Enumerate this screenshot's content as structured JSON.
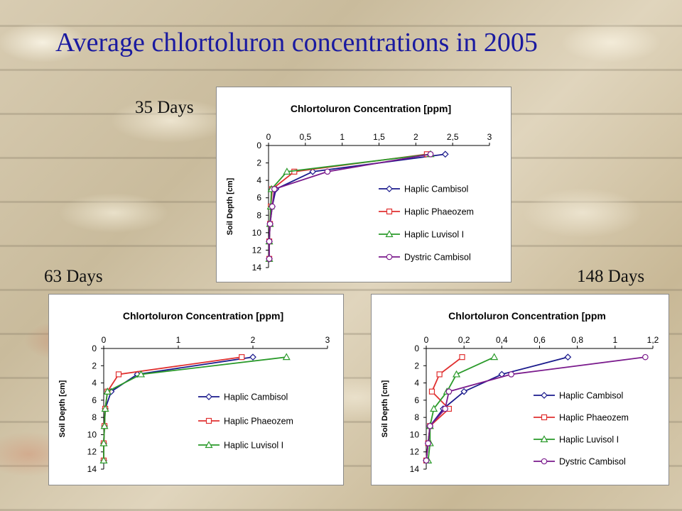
{
  "page": {
    "title": "Average chlortoluron concentrations in 2005"
  },
  "chart_data": [
    {
      "type": "line",
      "panel_label": "35 Days",
      "title": "Chlortoluron Concentration [ppm]",
      "xlabel": "Chlortoluron Concentration [ppm]",
      "ylabel": "Soil Depth [cm]",
      "xlim": [
        0,
        3
      ],
      "ylim": [
        0,
        14
      ],
      "x_ticks": [
        0,
        0.5,
        1,
        1.5,
        2,
        2.5,
        3
      ],
      "x_tick_labels": [
        "0",
        "0,5",
        "1",
        "1,5",
        "2",
        "2,5",
        "3"
      ],
      "y_ticks": [
        0,
        2,
        4,
        6,
        8,
        10,
        12,
        14
      ],
      "y_tick_labels": [
        "0",
        "2",
        "4",
        "6",
        "8",
        "10",
        "12",
        "14"
      ],
      "x_axis_position": "top",
      "y_inverted": true,
      "legend_position": "right",
      "series": [
        {
          "name": "Haplic Cambisol",
          "color": "#1a1a8c",
          "marker": "diamond",
          "points": [
            [
              2.4,
              1
            ],
            [
              0.6,
              3
            ],
            [
              0.1,
              5
            ],
            [
              0.05,
              7
            ],
            [
              0.02,
              9
            ],
            [
              0.01,
              11
            ],
            [
              0.01,
              13
            ]
          ]
        },
        {
          "name": "Haplic Phaeozem",
          "color": "#e03030",
          "marker": "square",
          "points": [
            [
              2.15,
              1
            ],
            [
              0.35,
              3
            ],
            [
              0.05,
              5
            ],
            [
              0.03,
              7
            ],
            [
              0.02,
              9
            ],
            [
              0.01,
              11
            ],
            [
              0.01,
              13
            ]
          ]
        },
        {
          "name": "Haplic Luvisol I",
          "color": "#2a9a2a",
          "marker": "triangle",
          "points": [
            [
              2.2,
              1
            ],
            [
              0.25,
              3
            ],
            [
              0.04,
              5
            ],
            [
              0.03,
              7
            ],
            [
              0.02,
              9
            ],
            [
              0.01,
              11
            ],
            [
              0.01,
              13
            ]
          ]
        },
        {
          "name": "Dystric Cambisol",
          "color": "#7a1a8c",
          "marker": "circle",
          "points": [
            [
              2.2,
              1
            ],
            [
              0.8,
              3
            ],
            [
              0.08,
              5
            ],
            [
              0.05,
              7
            ],
            [
              0.02,
              9
            ],
            [
              0.01,
              11
            ],
            [
              0.01,
              13
            ]
          ]
        }
      ]
    },
    {
      "type": "line",
      "panel_label": "63 Days",
      "title": "Chlortoluron Concentration [ppm]",
      "xlabel": "Chlortoluron Concentration [ppm]",
      "ylabel": "Soil Depth [cm]",
      "xlim": [
        0,
        3
      ],
      "ylim": [
        0,
        14
      ],
      "x_ticks": [
        0,
        1,
        2,
        3
      ],
      "x_tick_labels": [
        "0",
        "1",
        "2",
        "3"
      ],
      "y_ticks": [
        0,
        2,
        4,
        6,
        8,
        10,
        12,
        14
      ],
      "y_tick_labels": [
        "0",
        "2",
        "4",
        "6",
        "8",
        "10",
        "12",
        "14"
      ],
      "x_axis_position": "top",
      "y_inverted": true,
      "legend_position": "right",
      "series": [
        {
          "name": "Haplic Cambisol",
          "color": "#1a1a8c",
          "marker": "diamond",
          "points": [
            [
              2.0,
              1
            ],
            [
              0.45,
              3
            ],
            [
              0.1,
              5
            ],
            [
              0.02,
              7
            ],
            [
              0.01,
              9
            ],
            [
              0.0,
              11
            ],
            [
              0.0,
              13
            ]
          ]
        },
        {
          "name": "Haplic Phaeozem",
          "color": "#e03030",
          "marker": "square",
          "points": [
            [
              1.85,
              1
            ],
            [
              0.2,
              3
            ],
            [
              0.05,
              5
            ],
            [
              0.02,
              7
            ],
            [
              0.01,
              9
            ],
            [
              0.0,
              11
            ],
            [
              0.0,
              13
            ]
          ]
        },
        {
          "name": "Haplic Luvisol I",
          "color": "#2a9a2a",
          "marker": "triangle",
          "points": [
            [
              2.45,
              1
            ],
            [
              0.5,
              3
            ],
            [
              0.05,
              5
            ],
            [
              0.02,
              7
            ],
            [
              0.01,
              9
            ],
            [
              0.0,
              11
            ],
            [
              0.0,
              13
            ]
          ]
        }
      ]
    },
    {
      "type": "line",
      "panel_label": "148 Days",
      "title": "Chlortoluron Concentration [ppm",
      "xlabel": "Chlortoluron Concentration [ppm",
      "ylabel": "Soil Depth [cm]",
      "xlim": [
        0,
        1.2
      ],
      "ylim": [
        0,
        14
      ],
      "x_ticks": [
        0,
        0.2,
        0.4,
        0.6,
        0.8,
        1,
        1.2
      ],
      "x_tick_labels": [
        "0",
        "0,2",
        "0,4",
        "0,6",
        "0,8",
        "1",
        "1,2"
      ],
      "y_ticks": [
        0,
        2,
        4,
        6,
        8,
        10,
        12,
        14
      ],
      "y_tick_labels": [
        "0",
        "2",
        "4",
        "6",
        "8",
        "10",
        "12",
        "14"
      ],
      "x_axis_position": "top",
      "y_inverted": true,
      "legend_position": "right",
      "series": [
        {
          "name": "Haplic Cambisol",
          "color": "#1a1a8c",
          "marker": "diamond",
          "points": [
            [
              0.75,
              1
            ],
            [
              0.4,
              3
            ],
            [
              0.2,
              5
            ],
            [
              0.09,
              7
            ],
            [
              0.02,
              9
            ],
            [
              0.01,
              11
            ],
            [
              0.0,
              13
            ]
          ]
        },
        {
          "name": "Haplic Phaeozem",
          "color": "#e03030",
          "marker": "square",
          "points": [
            [
              0.19,
              1
            ],
            [
              0.07,
              3
            ],
            [
              0.03,
              5
            ],
            [
              0.12,
              7
            ],
            [
              0.02,
              9
            ],
            [
              0.01,
              11
            ],
            [
              0.0,
              13
            ]
          ]
        },
        {
          "name": "Haplic Luvisol I",
          "color": "#2a9a2a",
          "marker": "triangle",
          "points": [
            [
              0.36,
              1
            ],
            [
              0.16,
              3
            ],
            [
              0.11,
              5
            ],
            [
              0.04,
              7
            ],
            [
              0.02,
              9
            ],
            [
              0.02,
              11
            ],
            [
              0.01,
              13
            ]
          ]
        },
        {
          "name": "Dystric Cambisol",
          "color": "#7a1a8c",
          "marker": "circle",
          "points": [
            [
              1.16,
              1
            ],
            [
              0.45,
              3
            ],
            [
              0.12,
              5
            ],
            [
              0.1,
              7
            ],
            [
              0.02,
              9
            ],
            [
              0.01,
              11
            ],
            [
              0.0,
              13
            ]
          ]
        }
      ]
    }
  ]
}
